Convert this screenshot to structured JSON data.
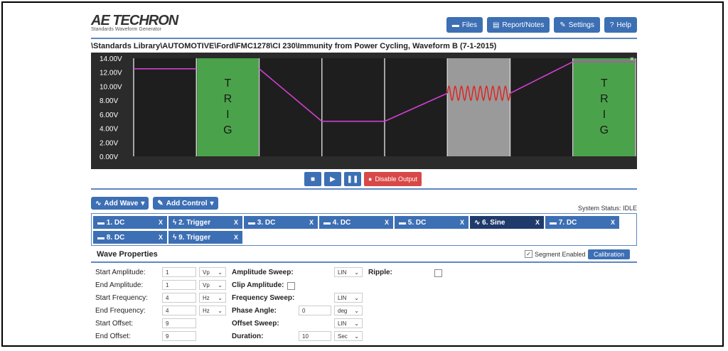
{
  "logo": {
    "name": "AE TECHRON",
    "tagline": "Standards Waveform Generator"
  },
  "topbar": {
    "files": "Files",
    "report": "Report/Notes",
    "settings": "Settings",
    "help": "Help"
  },
  "path": "\\Standards Library\\AUTOMOTIVE\\Ford\\FMC1278\\CI 230\\Immunity from Power Cycling, Waveform B (7-1-2015)",
  "chart_data": {
    "type": "line",
    "y_ticks": [
      "14.00V",
      "12.00V",
      "10.00V",
      "8.00V",
      "6.00V",
      "4.00V",
      "2.00V",
      "0.00V"
    ],
    "ylim": [
      0,
      14
    ],
    "segments": 8,
    "trig_text": "TRIG",
    "grid": true,
    "series": [
      {
        "values": [
          [
            0,
            12.5
          ],
          [
            1,
            12.5
          ],
          [
            2,
            12.5
          ],
          [
            3,
            5
          ],
          [
            4,
            5
          ],
          [
            5,
            9
          ],
          [
            6,
            9
          ],
          [
            7,
            13.5
          ],
          [
            8,
            13.5
          ]
        ]
      }
    ],
    "colors": {
      "line": "#d040d0",
      "sine": "#e02020",
      "trig": "#4aa34a",
      "sine_bg": "#9a9a9a"
    }
  },
  "controls": {
    "disable_output": "Disable Output"
  },
  "add": {
    "wave": "Add Wave",
    "control": "Add Control"
  },
  "status": "System Status: IDLE",
  "segments": [
    {
      "label": "1. DC",
      "icon": "dc"
    },
    {
      "label": "2. Trigger",
      "icon": "trigger"
    },
    {
      "label": "3. DC",
      "icon": "dc"
    },
    {
      "label": "4. DC",
      "icon": "dc"
    },
    {
      "label": "5. DC",
      "icon": "dc"
    },
    {
      "label": "6. Sine",
      "icon": "sine"
    },
    {
      "label": "7. DC",
      "icon": "dc"
    },
    {
      "label": "8. DC",
      "icon": "dc"
    },
    {
      "label": "9. Trigger",
      "icon": "trigger"
    }
  ],
  "props": {
    "title": "Wave Properties",
    "segment_enabled": "Segment Enabled",
    "calibration": "Calibration",
    "start_amplitude": {
      "label": "Start Amplitude:",
      "value": "1",
      "unit": "Vp"
    },
    "end_amplitude": {
      "label": "End Amplitude:",
      "value": "1",
      "unit": "Vp"
    },
    "start_frequency": {
      "label": "Start Frequency:",
      "value": "4",
      "unit": "Hz"
    },
    "end_frequency": {
      "label": "End Frequency:",
      "value": "4",
      "unit": "Hz"
    },
    "start_offset": {
      "label": "Start Offset:",
      "value": "9"
    },
    "end_offset": {
      "label": "End Offset:",
      "value": "9"
    },
    "amplitude_sweep": {
      "label": "Amplitude Sweep:",
      "value": "LIN"
    },
    "clip_amplitude": {
      "label": "Clip Amplitude:"
    },
    "frequency_sweep": {
      "label": "Frequency Sweep:",
      "value": "LIN"
    },
    "phase_angle": {
      "label": "Phase Angle:",
      "value": "0",
      "unit": "deg"
    },
    "offset_sweep": {
      "label": "Offset Sweep:",
      "value": "LIN"
    },
    "duration": {
      "label": "Duration:",
      "value": "10",
      "unit": "Sec"
    },
    "ripple": {
      "label": "Ripple:"
    }
  }
}
